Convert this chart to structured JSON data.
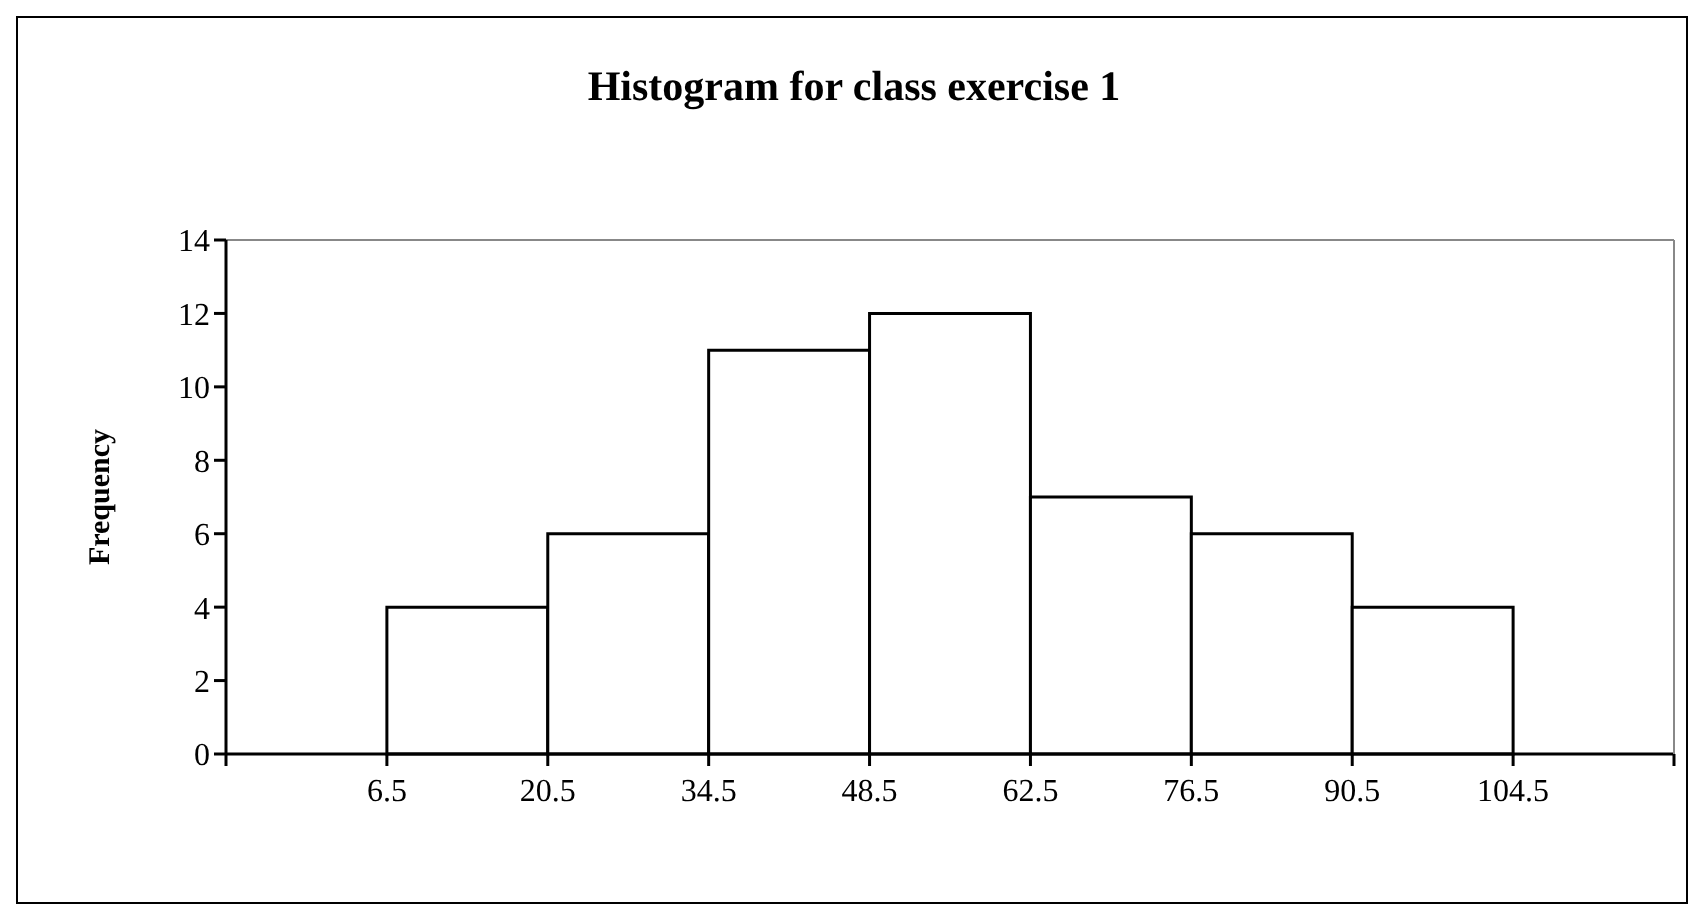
{
  "chart_data": {
    "type": "histogram",
    "title": "Histogram for class exercise 1",
    "ylabel": "Frequency",
    "bins": [
      6.5,
      20.5,
      34.5,
      48.5,
      62.5,
      76.5,
      90.5,
      104.5
    ],
    "values": [
      4,
      6,
      11,
      12,
      7,
      6,
      4
    ],
    "color": "#ffffff",
    "xlim": [
      -7.5,
      118.5
    ],
    "xticks": [
      {
        "value": -7.5,
        "label": null
      },
      6.5,
      20.5,
      34.5,
      48.5,
      62.5,
      76.5,
      90.5,
      104.5,
      {
        "value": 118.5,
        "label": null
      }
    ],
    "ylim": [
      0,
      14
    ],
    "yticks": [
      0,
      2,
      4,
      6,
      8,
      10,
      12,
      14
    ],
    "grid": false
  }
}
